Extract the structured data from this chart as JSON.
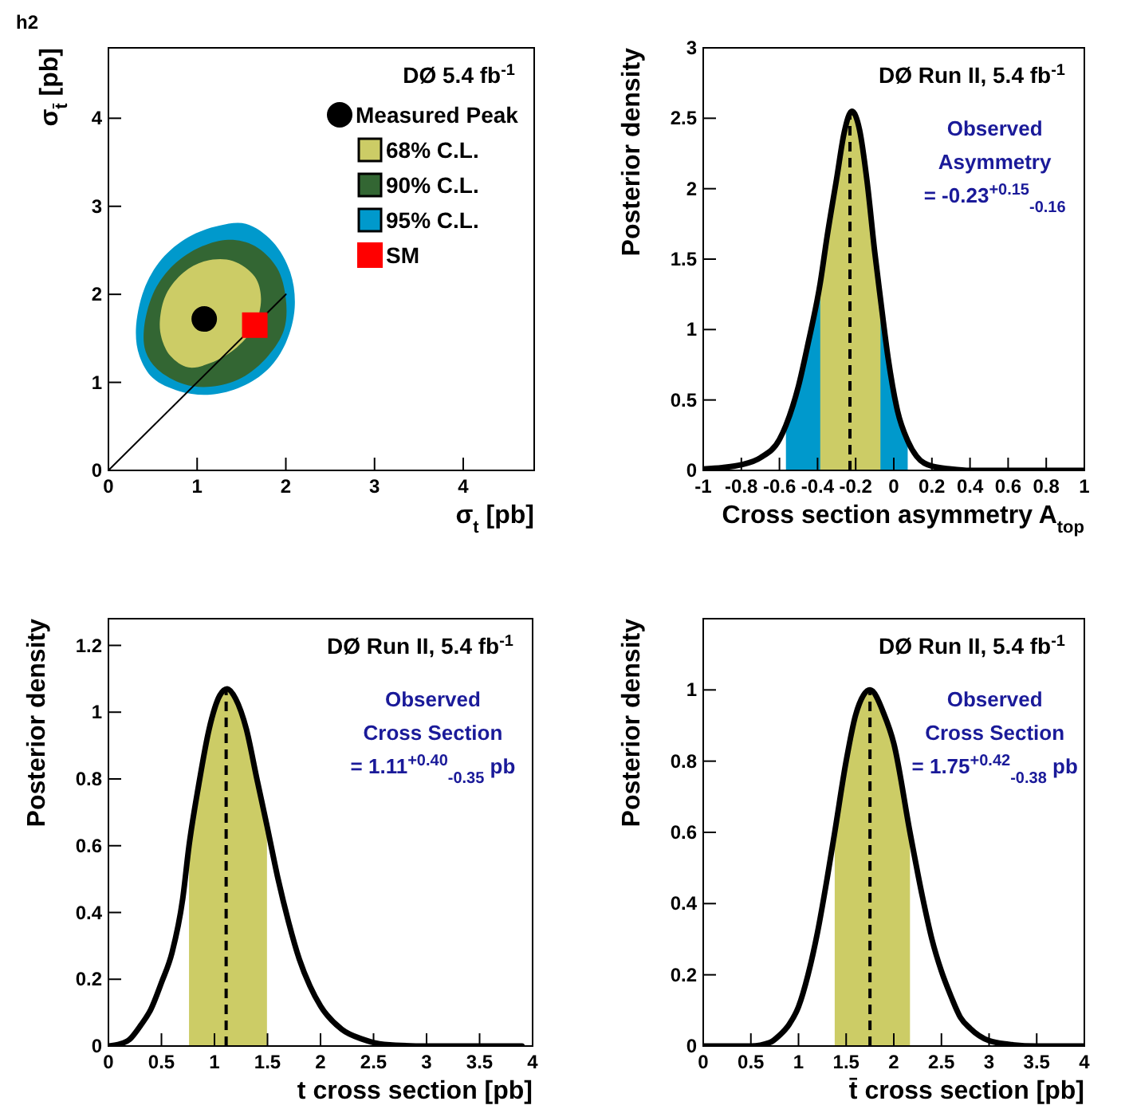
{
  "chart_data": [
    {
      "type": "scatter",
      "title": "h2",
      "xlabel": "σ$_{t}$ [pb]",
      "ylabel": "σ$_{t̄}$ [pb]",
      "xlim": [
        0,
        4.8
      ],
      "ylim": [
        0,
        4.8
      ],
      "xticks": [
        0,
        1,
        2,
        3,
        4
      ],
      "yticks": [
        0,
        1,
        2,
        3,
        4
      ],
      "legend": "top right",
      "annotations": [
        "DØ 5.4 fb$^{-1}$"
      ],
      "series": [
        {
          "name": "Measured Peak",
          "type": "scatter",
          "marker": "circle",
          "color": "#000000",
          "x": [
            1.08
          ],
          "values": [
            1.72
          ]
        },
        {
          "name": "68% C.L.",
          "type": "area",
          "color": "#cccc66",
          "x": [
            0.58,
            0.65,
            0.85,
            1.1,
            1.4,
            1.65,
            1.72,
            1.65,
            1.45,
            1.15,
            0.9,
            0.7,
            0.6,
            0.58
          ],
          "values": [
            1.7,
            2.0,
            2.25,
            2.38,
            2.38,
            2.2,
            1.95,
            1.65,
            1.4,
            1.22,
            1.17,
            1.3,
            1.5,
            1.7
          ]
        },
        {
          "name": "90% C.L.",
          "type": "area",
          "color": "#336633",
          "x": [
            0.4,
            0.5,
            0.7,
            1.0,
            1.35,
            1.65,
            1.9,
            2.0,
            1.98,
            1.8,
            1.5,
            1.15,
            0.85,
            0.55,
            0.42,
            0.4
          ],
          "values": [
            1.6,
            2.0,
            2.3,
            2.52,
            2.62,
            2.55,
            2.3,
            1.95,
            1.6,
            1.3,
            1.05,
            0.95,
            0.98,
            1.15,
            1.35,
            1.6
          ]
        },
        {
          "name": "95% C.L.",
          "type": "area",
          "color": "#0099cc",
          "x": [
            0.31,
            0.4,
            0.6,
            0.9,
            1.25,
            1.55,
            1.85,
            2.05,
            2.1,
            2.0,
            1.8,
            1.5,
            1.15,
            0.8,
            0.5,
            0.35,
            0.31
          ],
          "values": [
            1.6,
            2.05,
            2.4,
            2.65,
            2.78,
            2.8,
            2.6,
            2.25,
            1.85,
            1.45,
            1.15,
            0.95,
            0.86,
            0.9,
            1.05,
            1.3,
            1.6
          ]
        },
        {
          "name": "SM",
          "type": "scatter",
          "marker": "square",
          "color": "#ff0000",
          "x": [
            1.65
          ],
          "values": [
            1.65
          ]
        },
        {
          "type": "line",
          "color": "#000000",
          "x": [
            0,
            2
          ],
          "values": [
            0,
            2
          ]
        }
      ]
    },
    {
      "type": "line",
      "xlabel": "Cross section asymmetry A$_{top}$",
      "ylabel": "Posterior density",
      "xlim": [
        -1,
        1
      ],
      "ylim": [
        0,
        3
      ],
      "xticks": [
        -1,
        -0.8,
        -0.6,
        -0.4,
        -0.2,
        0,
        0.2,
        0.4,
        0.6,
        0.8,
        1
      ],
      "yticks": [
        0,
        0.5,
        1,
        1.5,
        2,
        2.5,
        3
      ],
      "annotations": [
        "DØ Run II, 5.4 fb$^{-1}$",
        "Observed",
        "Asymmetry",
        "= -0.23$^{+0.15}$$_{-0.16}$"
      ],
      "ref_lines": [
        {
          "axis": "x",
          "value": -0.23,
          "line_style": "dashed"
        }
      ],
      "series": [
        {
          "type": "area",
          "color": "#0099cc",
          "x": [
            -0.566,
            -0.5,
            -0.45,
            -0.386,
            -0.35,
            -0.3,
            -0.26,
            -0.22,
            -0.18,
            -0.14,
            -0.1,
            -0.07,
            -0.03,
            0.02,
            0.073
          ],
          "values": [
            0.32,
            0.6,
            0.9,
            1.33,
            1.66,
            2.07,
            2.4,
            2.55,
            2.42,
            2.05,
            1.55,
            1.22,
            0.8,
            0.42,
            0.21
          ]
        },
        {
          "type": "area",
          "color": "#cccc66",
          "x": [
            -0.386,
            -0.35,
            -0.3,
            -0.26,
            -0.22,
            -0.18,
            -0.14,
            -0.1,
            -0.07
          ],
          "values": [
            1.33,
            1.66,
            2.07,
            2.4,
            2.55,
            2.42,
            2.05,
            1.55,
            1.22
          ]
        },
        {
          "type": "line",
          "color": "#000000",
          "x": [
            -1,
            -0.9,
            -0.8,
            -0.7,
            -0.6,
            -0.566,
            -0.5,
            -0.45,
            -0.386,
            -0.35,
            -0.3,
            -0.26,
            -0.22,
            -0.18,
            -0.14,
            -0.1,
            -0.07,
            -0.03,
            0.02,
            0.073,
            0.12,
            0.2,
            0.3,
            0.4,
            0.6,
            0.8,
            1
          ],
          "values": [
            0.01,
            0.02,
            0.04,
            0.09,
            0.22,
            0.32,
            0.6,
            0.9,
            1.33,
            1.66,
            2.07,
            2.4,
            2.55,
            2.42,
            2.05,
            1.55,
            1.22,
            0.8,
            0.42,
            0.21,
            0.1,
            0.03,
            0.01,
            0,
            0,
            0,
            0
          ]
        }
      ]
    },
    {
      "type": "line",
      "xlabel": "t cross section [pb]",
      "ylabel": "Posterior density",
      "xlim": [
        0,
        4
      ],
      "ylim": [
        0,
        1.28
      ],
      "xticks": [
        0,
        0.5,
        1,
        1.5,
        2,
        2.5,
        3,
        3.5,
        4
      ],
      "yticks": [
        0,
        0.2,
        0.4,
        0.6,
        0.8,
        1,
        1.2
      ],
      "annotations": [
        "DØ Run II, 5.4 fb$^{-1}$",
        "Observed",
        "Cross Section",
        "= 1.11$^{+0.40}$$_{-0.35}$ pb"
      ],
      "ref_lines": [
        {
          "axis": "x",
          "value": 1.11,
          "line_style": "dashed"
        }
      ],
      "series": [
        {
          "type": "area",
          "color": "#cccc66",
          "x": [
            0.76,
            0.85,
            0.95,
            1.05,
            1.12,
            1.2,
            1.3,
            1.4,
            1.495
          ],
          "values": [
            0.6,
            0.78,
            0.95,
            1.05,
            1.07,
            1.04,
            0.95,
            0.8,
            0.66
          ]
        },
        {
          "type": "line",
          "color": "#000000",
          "x": [
            0,
            0.1,
            0.2,
            0.3,
            0.4,
            0.5,
            0.6,
            0.7,
            0.76,
            0.85,
            0.95,
            1.05,
            1.12,
            1.2,
            1.3,
            1.4,
            1.495,
            1.6,
            1.7,
            1.8,
            1.9,
            2.0,
            2.2,
            2.4,
            2.6,
            3.0,
            3.5,
            3.9
          ],
          "values": [
            0,
            0.005,
            0.02,
            0.06,
            0.11,
            0.19,
            0.28,
            0.44,
            0.6,
            0.78,
            0.95,
            1.05,
            1.07,
            1.04,
            0.95,
            0.8,
            0.66,
            0.5,
            0.37,
            0.26,
            0.18,
            0.12,
            0.05,
            0.02,
            0.005,
            0,
            0,
            0
          ]
        }
      ]
    },
    {
      "type": "line",
      "xlabel": "t̄ cross section [pb]",
      "ylabel": "Posterior density",
      "xlim": [
        0,
        4
      ],
      "ylim": [
        0,
        1.2
      ],
      "xticks": [
        0,
        0.5,
        1,
        1.5,
        2,
        2.5,
        3,
        3.5,
        4
      ],
      "yticks": [
        0,
        0.2,
        0.4,
        0.6,
        0.8,
        1
      ],
      "annotations": [
        "DØ Run II, 5.4 fb$^{-1}$",
        "Observed",
        "Cross Section",
        "= 1.75$^{+0.42}$$_{-0.38}$ pb"
      ],
      "ref_lines": [
        {
          "axis": "x",
          "value": 1.75,
          "line_style": "dashed"
        }
      ],
      "series": [
        {
          "type": "area",
          "color": "#cccc66",
          "x": [
            1.38,
            1.5,
            1.6,
            1.75,
            1.9,
            2.0,
            2.17
          ],
          "values": [
            0.6,
            0.8,
            0.93,
            1.0,
            0.93,
            0.85,
            0.6
          ]
        },
        {
          "type": "line",
          "color": "#000000",
          "x": [
            0,
            0.5,
            0.7,
            0.8,
            0.9,
            1.0,
            1.1,
            1.2,
            1.3,
            1.38,
            1.5,
            1.6,
            1.75,
            1.9,
            2.0,
            2.17,
            2.3,
            2.4,
            2.5,
            2.6,
            2.7,
            2.8,
            3.0,
            3.2,
            3.5,
            4
          ],
          "values": [
            0,
            0,
            0.01,
            0.03,
            0.06,
            0.11,
            0.2,
            0.32,
            0.47,
            0.6,
            0.8,
            0.93,
            1.0,
            0.93,
            0.85,
            0.6,
            0.42,
            0.3,
            0.21,
            0.14,
            0.08,
            0.05,
            0.015,
            0.005,
            0,
            0
          ]
        }
      ]
    }
  ]
}
